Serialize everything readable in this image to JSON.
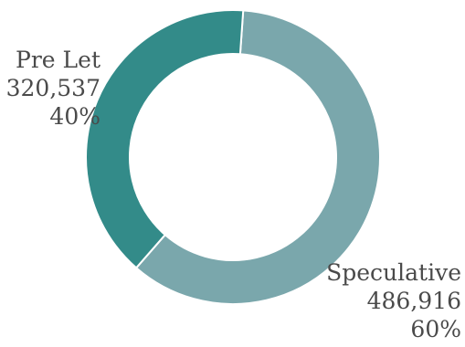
{
  "chart_data": {
    "type": "pie",
    "donut": true,
    "start_angle_deg": 4,
    "slices": [
      {
        "name": "Speculative",
        "value": 486916,
        "value_label": "486,916",
        "percent_label": "60%",
        "color": "#7aa7ac"
      },
      {
        "name": "Pre Let",
        "value": 320537,
        "value_label": "320,537",
        "percent_label": "40%",
        "color": "#338b89"
      }
    ]
  }
}
